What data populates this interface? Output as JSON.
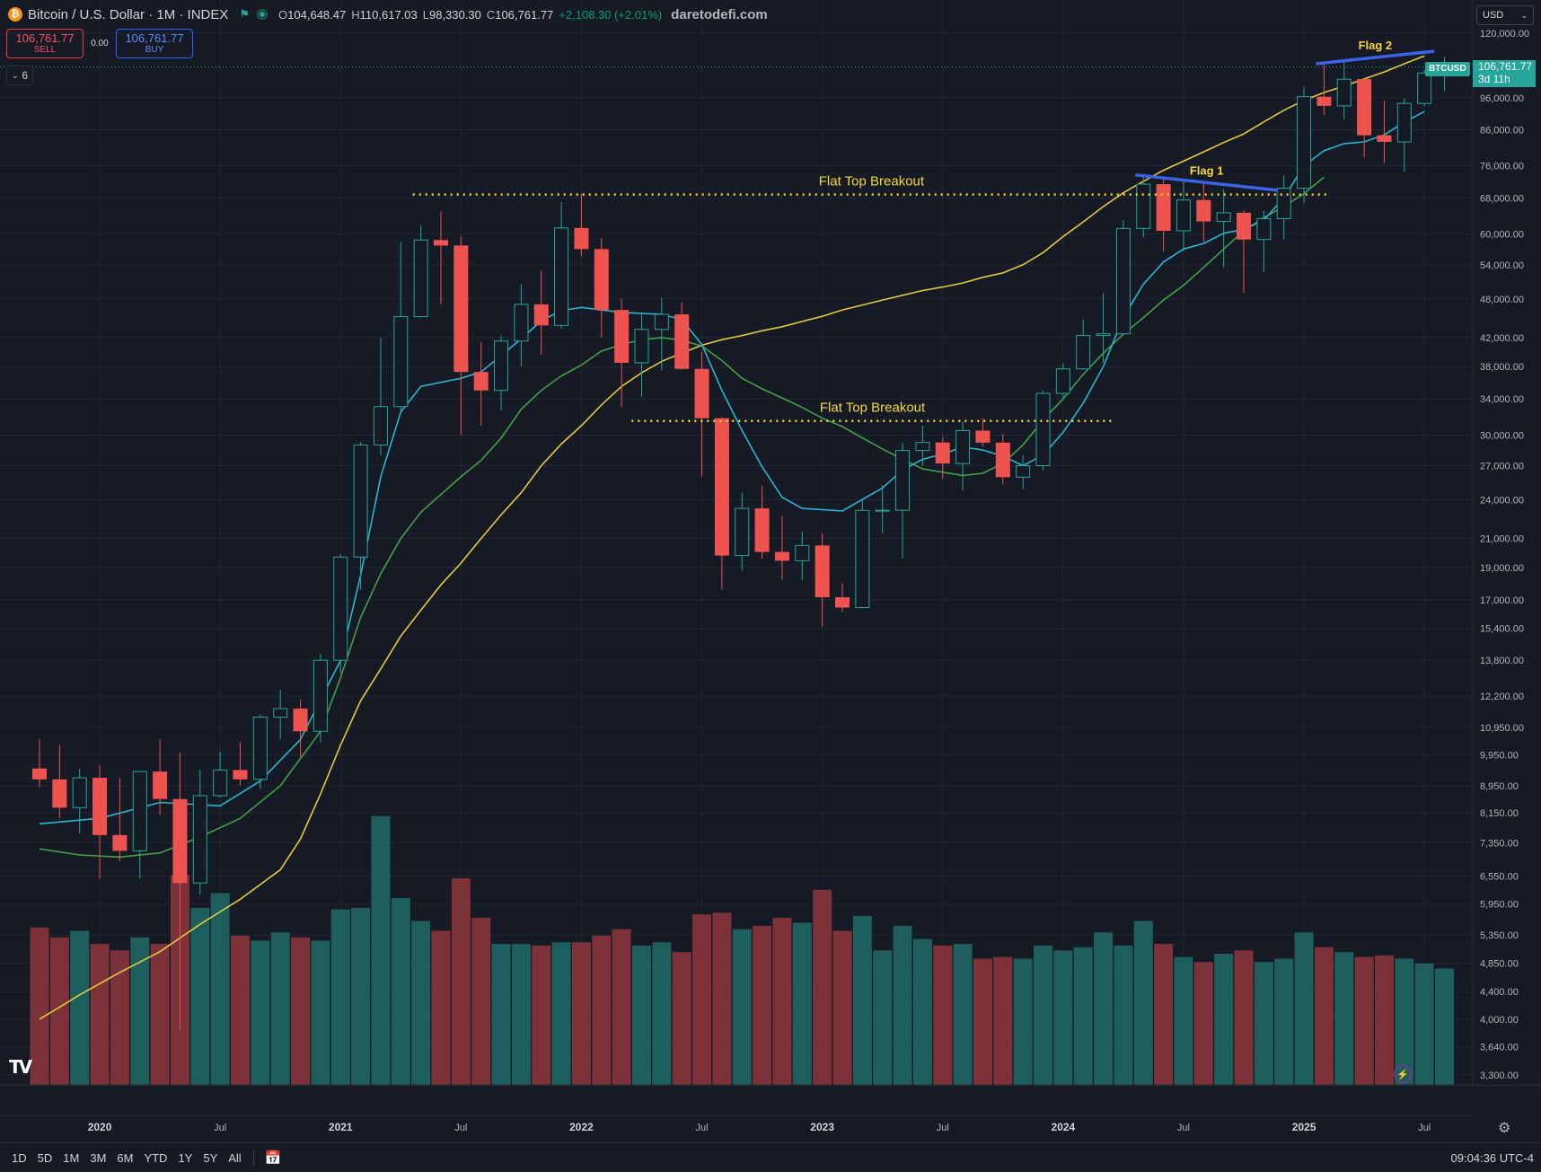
{
  "header": {
    "symbol_title": "Bitcoin / U.S. Dollar · 1M · INDEX",
    "coin_icon": "bitcoin-icon",
    "o_label": "O",
    "o_value": "104,648.47",
    "h_label": "H",
    "h_value": "110,617.03",
    "l_label": "L",
    "l_value": "98,330.30",
    "c_label": "C",
    "c_value": "106,761.77",
    "change": "+2,108.30 (+2.01%)",
    "brand": "daretodefi.com"
  },
  "trade": {
    "sell_price": "106,761.77",
    "sell_label": "SELL",
    "spread": "0.00",
    "buy_price": "106,761.77",
    "buy_label": "BUY"
  },
  "indicators_count": "6",
  "currency": "USD",
  "price_tag": {
    "symbol": "BTCUSD",
    "price": "106,761.77",
    "countdown": "3d 11h"
  },
  "toolbar": {
    "ranges": [
      "1D",
      "5D",
      "1M",
      "3M",
      "6M",
      "YTD",
      "1Y",
      "5Y",
      "All"
    ],
    "clock": "09:04:36 UTC-4"
  },
  "colors": {
    "up": "#26a69a",
    "down": "#ef5350",
    "vol_up": "#1e5f5d",
    "vol_down": "#7d3139",
    "ma_fast": "#2bb5d2",
    "ma_mid": "#43a047",
    "ma_slow": "#e3c940",
    "annot_line": "#3b63e8",
    "annot_text": "#f5d835",
    "bg": "#161a25",
    "grid": "#232734"
  },
  "chart_data": {
    "type": "candlestick",
    "y_scale": "log",
    "ylim": [
      3300,
      120000
    ],
    "y_ticks": [
      "120,000.00",
      "96,000.00",
      "86,000.00",
      "76,000.00",
      "68,000.00",
      "60,000.00",
      "54,000.00",
      "48,000.00",
      "42,000.00",
      "38,000.00",
      "34,000.00",
      "30,000.00",
      "27,000.00",
      "24,000.00",
      "21,000.00",
      "19,000.00",
      "17,000.00",
      "15,400.00",
      "13,800.00",
      "12,200.00",
      "10,950.00",
      "9,950.00",
      "8,950.00",
      "8,150.00",
      "7,350.00",
      "6,550.00",
      "5,950.00",
      "5,350.00",
      "4,850.00",
      "4,400.00",
      "4,000.00",
      "3,640.00",
      "3,300.00"
    ],
    "x_ticks": [
      {
        "label": "2020",
        "index": 3
      },
      {
        "label": "Jul",
        "index": 9
      },
      {
        "label": "2021",
        "index": 15
      },
      {
        "label": "Jul",
        "index": 21
      },
      {
        "label": "2022",
        "index": 27
      },
      {
        "label": "Jul",
        "index": 33
      },
      {
        "label": "2023",
        "index": 39
      },
      {
        "label": "Jul",
        "index": 45
      },
      {
        "label": "2024",
        "index": 51
      },
      {
        "label": "Jul",
        "index": 57
      },
      {
        "label": "2025",
        "index": 63
      },
      {
        "label": "Jul",
        "index": 69
      }
    ],
    "candles": [
      [
        9500,
        10500,
        8900,
        9150
      ],
      [
        9150,
        10300,
        8000,
        8300
      ],
      [
        8300,
        9500,
        7600,
        9200
      ],
      [
        9200,
        9600,
        6500,
        7550
      ],
      [
        7550,
        9200,
        6900,
        7150
      ],
      [
        7150,
        9400,
        6500,
        9400
      ],
      [
        9400,
        10500,
        8100,
        8550
      ],
      [
        8550,
        10050,
        3850,
        6400
      ],
      [
        6400,
        9450,
        6150,
        8650
      ],
      [
        8650,
        10070,
        8600,
        9450
      ],
      [
        9450,
        10400,
        8950,
        9150
      ],
      [
        9150,
        11450,
        8850,
        11340
      ],
      [
        11340,
        12470,
        10500,
        11680
      ],
      [
        11680,
        12050,
        9880,
        10800
      ],
      [
        10800,
        14100,
        10400,
        13800
      ],
      [
        13800,
        19900,
        13200,
        19700
      ],
      [
        19700,
        29300,
        17600,
        28990
      ],
      [
        28990,
        41950,
        28000,
        33100
      ],
      [
        33100,
        58350,
        32300,
        45150
      ],
      [
        45150,
        61780,
        45000,
        58800
      ],
      [
        58800,
        64900,
        47100,
        57700
      ],
      [
        57700,
        59500,
        30000,
        37300
      ],
      [
        37300,
        41300,
        31000,
        35000
      ],
      [
        35000,
        42300,
        32700,
        41500
      ],
      [
        41500,
        50500,
        38000,
        47100
      ],
      [
        47100,
        52900,
        39600,
        43800
      ],
      [
        43800,
        67000,
        43300,
        61300
      ],
      [
        61300,
        69000,
        55600,
        57000
      ],
      [
        57000,
        59200,
        42000,
        46200
      ],
      [
        46200,
        48000,
        33000,
        38500
      ],
      [
        38500,
        45800,
        34300,
        43200
      ],
      [
        43200,
        48200,
        37500,
        45500
      ],
      [
        45500,
        47400,
        37600,
        37700
      ],
      [
        37700,
        40000,
        26000,
        31800
      ],
      [
        31800,
        31900,
        17600,
        19800
      ],
      [
        19800,
        24600,
        18800,
        23300
      ],
      [
        23300,
        25200,
        19600,
        20050
      ],
      [
        20050,
        22700,
        18200,
        19450
      ],
      [
        19450,
        21500,
        18200,
        20500
      ],
      [
        20500,
        21400,
        15500,
        17150
      ],
      [
        17150,
        18000,
        16300,
        16550
      ],
      [
        16550,
        23950,
        16500,
        23140
      ],
      [
        23140,
        25250,
        21400,
        23150
      ],
      [
        23150,
        29200,
        19600,
        28450
      ],
      [
        28450,
        31000,
        26950,
        29250
      ],
      [
        29250,
        29800,
        25800,
        27200
      ],
      [
        27200,
        31400,
        24800,
        30470
      ],
      [
        30470,
        31800,
        28850,
        29230
      ],
      [
        29230,
        30100,
        25300,
        25950
      ],
      [
        25950,
        28000,
        24900,
        27000
      ],
      [
        27000,
        35000,
        26550,
        34650
      ],
      [
        34650,
        38400,
        34100,
        37700
      ],
      [
        37700,
        44700,
        37600,
        42300
      ],
      [
        42300,
        48970,
        38550,
        42550
      ],
      [
        42550,
        63000,
        42800,
        61200
      ],
      [
        61200,
        73800,
        59300,
        71300
      ],
      [
        71300,
        72800,
        56500,
        60700
      ],
      [
        60700,
        71900,
        56600,
        67500
      ],
      [
        67500,
        71900,
        58400,
        62700
      ],
      [
        62700,
        70000,
        53500,
        64600
      ],
      [
        64600,
        65100,
        49000,
        58900
      ],
      [
        58900,
        65000,
        52600,
        63300
      ],
      [
        63300,
        73600,
        58900,
        70300
      ],
      [
        70300,
        99800,
        66800,
        96400
      ],
      [
        96400,
        108400,
        90500,
        93400
      ],
      [
        93400,
        109400,
        89200,
        102400
      ],
      [
        102400,
        102700,
        78200,
        84400
      ],
      [
        84400,
        95100,
        76600,
        82500
      ],
      [
        82500,
        95800,
        74500,
        94200
      ],
      [
        94200,
        105800,
        93300,
        104600
      ],
      [
        104600,
        110617.03,
        98330.3,
        106761.77
      ]
    ],
    "volumes": [
      4800,
      4500,
      4700,
      4300,
      4100,
      4500,
      4300,
      6400,
      5400,
      5850,
      4550,
      4400,
      4650,
      4500,
      4400,
      5350,
      5400,
      8200,
      5700,
      5000,
      4700,
      6300,
      5100,
      4300,
      4300,
      4250,
      4350,
      4350,
      4550,
      4750,
      4250,
      4350,
      4050,
      5200,
      5250,
      4750,
      4850,
      5100,
      4950,
      5950,
      4700,
      5150,
      4100,
      4850,
      4450,
      4250,
      4300,
      3850,
      3900,
      3850,
      4250,
      4100,
      4200,
      4650,
      4250,
      5000,
      4300,
      3900,
      3750,
      4000,
      4100,
      3750,
      3850,
      4650,
      4200,
      4050,
      3900,
      3950,
      3850,
      3700,
      3550
    ],
    "vol_scale_max": 8300,
    "ma_fast": [
      [
        0,
        7850
      ],
      [
        3,
        8000
      ],
      [
        6,
        8450
      ],
      [
        9,
        8350
      ],
      [
        11,
        9100
      ],
      [
        13,
        10500
      ],
      [
        15,
        13800
      ],
      [
        16,
        18500
      ],
      [
        17,
        26000
      ],
      [
        18,
        32500
      ],
      [
        19,
        35500
      ],
      [
        21,
        36500
      ],
      [
        22,
        37300
      ],
      [
        24,
        41800
      ],
      [
        25,
        44500
      ],
      [
        26,
        46100
      ],
      [
        27,
        46600
      ],
      [
        29,
        45800
      ],
      [
        31,
        45500
      ],
      [
        32,
        44700
      ],
      [
        33,
        41000
      ],
      [
        34,
        35000
      ],
      [
        35,
        30500
      ],
      [
        36,
        26900
      ],
      [
        37,
        24200
      ],
      [
        38,
        23300
      ],
      [
        40,
        23100
      ],
      [
        42,
        25000
      ],
      [
        43,
        26600
      ],
      [
        44,
        27600
      ],
      [
        45,
        28100
      ],
      [
        46,
        28800
      ],
      [
        47,
        28500
      ],
      [
        48,
        27900
      ],
      [
        49,
        27000
      ],
      [
        50,
        28000
      ],
      [
        51,
        30300
      ],
      [
        52,
        33500
      ],
      [
        53,
        38000
      ],
      [
        54,
        45000
      ],
      [
        55,
        50500
      ],
      [
        56,
        54500
      ],
      [
        57,
        57000
      ],
      [
        58,
        58100
      ],
      [
        59,
        60200
      ],
      [
        60,
        61000
      ],
      [
        61,
        63000
      ],
      [
        62,
        68000
      ],
      [
        63,
        76000
      ],
      [
        64,
        80000
      ],
      [
        65,
        82000
      ],
      [
        66,
        82500
      ],
      [
        67,
        84500
      ],
      [
        68,
        88300
      ],
      [
        69,
        91600
      ]
    ],
    "ma_mid": [
      [
        0,
        7200
      ],
      [
        2,
        7050
      ],
      [
        4,
        7000
      ],
      [
        6,
        7100
      ],
      [
        8,
        7500
      ],
      [
        10,
        8000
      ],
      [
        12,
        8950
      ],
      [
        14,
        10800
      ],
      [
        15,
        13000
      ],
      [
        16,
        16000
      ],
      [
        17,
        18600
      ],
      [
        18,
        21000
      ],
      [
        19,
        23000
      ],
      [
        21,
        26000
      ],
      [
        22,
        27500
      ],
      [
        23,
        29700
      ],
      [
        24,
        32800
      ],
      [
        25,
        35000
      ],
      [
        26,
        36800
      ],
      [
        27,
        38200
      ],
      [
        28,
        40100
      ],
      [
        29,
        41000
      ],
      [
        30,
        41700
      ],
      [
        31,
        42000
      ],
      [
        32,
        41600
      ],
      [
        33,
        40800
      ],
      [
        34,
        38800
      ],
      [
        35,
        36500
      ],
      [
        36,
        35200
      ],
      [
        37,
        34100
      ],
      [
        38,
        33000
      ],
      [
        39,
        31800
      ],
      [
        40,
        30900
      ],
      [
        41,
        29700
      ],
      [
        42,
        28600
      ],
      [
        43,
        27600
      ],
      [
        44,
        26700
      ],
      [
        45,
        26400
      ],
      [
        46,
        26100
      ],
      [
        47,
        26300
      ],
      [
        48,
        27200
      ],
      [
        49,
        29000
      ],
      [
        50,
        31600
      ],
      [
        51,
        34000
      ],
      [
        52,
        37000
      ],
      [
        53,
        39800
      ],
      [
        54,
        42500
      ],
      [
        55,
        45000
      ],
      [
        56,
        47800
      ],
      [
        57,
        50300
      ],
      [
        58,
        53500
      ],
      [
        59,
        57000
      ],
      [
        60,
        60700
      ],
      [
        61,
        63500
      ],
      [
        62,
        66000
      ],
      [
        63,
        69000
      ],
      [
        64,
        73000
      ]
    ],
    "ma_slow": [
      [
        0,
        4000
      ],
      [
        2,
        4350
      ],
      [
        4,
        4700
      ],
      [
        6,
        5050
      ],
      [
        8,
        5550
      ],
      [
        10,
        6050
      ],
      [
        12,
        6700
      ],
      [
        13,
        7450
      ],
      [
        14,
        8700
      ],
      [
        15,
        10300
      ],
      [
        16,
        12000
      ],
      [
        17,
        13400
      ],
      [
        18,
        15000
      ],
      [
        19,
        16400
      ],
      [
        20,
        17900
      ],
      [
        21,
        19300
      ],
      [
        22,
        21000
      ],
      [
        23,
        22800
      ],
      [
        24,
        24600
      ],
      [
        25,
        27000
      ],
      [
        26,
        29100
      ],
      [
        27,
        31000
      ],
      [
        28,
        33300
      ],
      [
        29,
        35500
      ],
      [
        30,
        37200
      ],
      [
        31,
        38700
      ],
      [
        32,
        39800
      ],
      [
        33,
        40900
      ],
      [
        34,
        41700
      ],
      [
        35,
        42300
      ],
      [
        36,
        43000
      ],
      [
        37,
        43600
      ],
      [
        38,
        44400
      ],
      [
        39,
        45200
      ],
      [
        40,
        46200
      ],
      [
        41,
        47000
      ],
      [
        42,
        47800
      ],
      [
        43,
        48600
      ],
      [
        44,
        49400
      ],
      [
        45,
        50000
      ],
      [
        46,
        50700
      ],
      [
        47,
        51700
      ],
      [
        48,
        52500
      ],
      [
        49,
        54000
      ],
      [
        50,
        56300
      ],
      [
        51,
        59500
      ],
      [
        52,
        62600
      ],
      [
        53,
        66000
      ],
      [
        54,
        69200
      ],
      [
        55,
        72000
      ],
      [
        56,
        74800
      ],
      [
        57,
        77200
      ],
      [
        58,
        79700
      ],
      [
        59,
        82300
      ],
      [
        60,
        84800
      ],
      [
        61,
        88400
      ],
      [
        62,
        92000
      ],
      [
        63,
        95200
      ],
      [
        64,
        97800
      ],
      [
        65,
        100000
      ],
      [
        66,
        102500
      ],
      [
        67,
        105000
      ],
      [
        68,
        108000
      ],
      [
        69,
        111000
      ]
    ],
    "annotations": [
      {
        "type": "dotted",
        "label": "Flat Top Breakout",
        "y": 68800,
        "x1": 18.6,
        "x2": 64.3
      },
      {
        "type": "dotted",
        "label": "Flat Top Breakout",
        "y": 31500,
        "x1": 29.5,
        "x2": 53.5
      },
      {
        "type": "trend",
        "label": "Flag 1",
        "x1": 54.6,
        "y1": 73600,
        "x2": 61.7,
        "y2": 69800
      },
      {
        "type": "trend",
        "label": "Flag 2",
        "x1": 63.6,
        "y1": 108000,
        "x2": 69.5,
        "y2": 112800
      }
    ],
    "last_price": 106761.77
  }
}
